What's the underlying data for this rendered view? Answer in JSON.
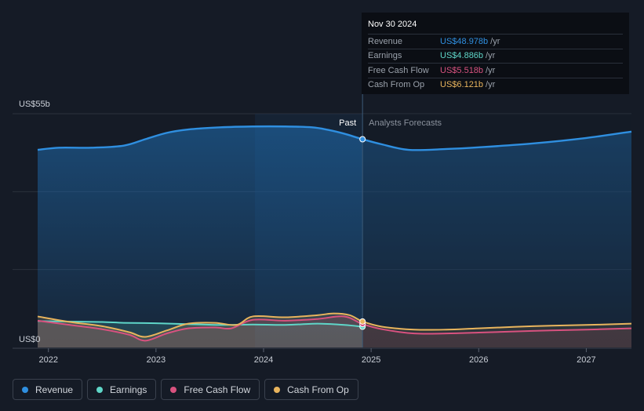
{
  "chart_data": {
    "type": "area",
    "yaxis": {
      "top_label": "US$55b",
      "bottom_label": "US$0",
      "ylim": [
        0,
        55
      ]
    },
    "x_ticks": [
      "2022",
      "2023",
      "2024",
      "2025",
      "2026",
      "2027"
    ],
    "xlim": [
      2021.9,
      2027.42
    ],
    "divider_x": 2024.92,
    "highlight_start_x": 2023.92,
    "past_label": "Past",
    "forecast_label": "Analysts Forecasts",
    "series": [
      {
        "name": "Revenue",
        "color": "#2f8fe0",
        "x": [
          2021.9,
          2022.1,
          2022.4,
          2022.7,
          2022.9,
          2023.1,
          2023.3,
          2023.6,
          2023.9,
          2024.2,
          2024.45,
          2024.6,
          2024.75,
          2024.92,
          2025.1,
          2025.35,
          2025.7,
          2026.0,
          2026.5,
          2027.0,
          2027.42
        ],
        "values": [
          46.5,
          47.0,
          47.0,
          47.5,
          49.0,
          50.5,
          51.3,
          51.8,
          52.0,
          52.0,
          51.8,
          51.2,
          50.3,
          49.0,
          47.8,
          46.5,
          46.7,
          47.1,
          48.0,
          49.3,
          50.8
        ]
      },
      {
        "name": "Earnings",
        "color": "#5fd6c8",
        "x": [
          2021.9,
          2022.2,
          2022.5,
          2022.7,
          2023.0,
          2023.3,
          2023.6,
          2023.9,
          2024.2,
          2024.5,
          2024.75,
          2024.92
        ],
        "values": [
          6.2,
          6.1,
          6.0,
          5.8,
          5.7,
          5.5,
          5.3,
          5.4,
          5.3,
          5.6,
          5.3,
          4.886
        ]
      },
      {
        "name": "Free Cash Flow",
        "color": "#d8527f",
        "x": [
          2021.9,
          2022.2,
          2022.5,
          2022.75,
          2022.9,
          2023.1,
          2023.3,
          2023.55,
          2023.7,
          2023.9,
          2024.2,
          2024.5,
          2024.75,
          2024.92,
          2025.1,
          2025.4,
          2025.7,
          2026.0,
          2026.5,
          2027.0,
          2027.42
        ],
        "values": [
          6.3,
          5.3,
          4.3,
          3.0,
          1.6,
          3.3,
          4.5,
          4.7,
          4.5,
          6.5,
          6.3,
          6.7,
          7.3,
          5.518,
          4.3,
          3.3,
          3.3,
          3.5,
          3.9,
          4.2,
          4.5
        ]
      },
      {
        "name": "Cash From Op",
        "color": "#e8b45d",
        "x": [
          2021.9,
          2022.2,
          2022.5,
          2022.75,
          2022.9,
          2023.1,
          2023.3,
          2023.55,
          2023.75,
          2023.9,
          2024.2,
          2024.5,
          2024.65,
          2024.8,
          2024.92,
          2025.1,
          2025.4,
          2025.7,
          2026.0,
          2026.5,
          2027.0,
          2027.42
        ],
        "values": [
          7.3,
          6.0,
          5.0,
          3.6,
          2.5,
          4.0,
          5.6,
          5.8,
          5.3,
          7.3,
          7.1,
          7.6,
          8.0,
          7.6,
          6.121,
          4.9,
          4.2,
          4.2,
          4.5,
          5.0,
          5.3,
          5.6
        ]
      }
    ]
  },
  "tooltip": {
    "date": "Nov 30 2024",
    "rows": [
      {
        "label": "Revenue",
        "value": "US$48.978b",
        "unit": "/yr",
        "color": "#2f8fe0"
      },
      {
        "label": "Earnings",
        "value": "US$4.886b",
        "unit": "/yr",
        "color": "#5fd6c8"
      },
      {
        "label": "Free Cash Flow",
        "value": "US$5.518b",
        "unit": "/yr",
        "color": "#d8527f"
      },
      {
        "label": "Cash From Op",
        "value": "US$6.121b",
        "unit": "/yr",
        "color": "#e8b45d"
      }
    ]
  },
  "legend": [
    {
      "label": "Revenue",
      "color": "#2f8fe0"
    },
    {
      "label": "Earnings",
      "color": "#5fd6c8"
    },
    {
      "label": "Free Cash Flow",
      "color": "#d8527f"
    },
    {
      "label": "Cash From Op",
      "color": "#e8b45d"
    }
  ]
}
